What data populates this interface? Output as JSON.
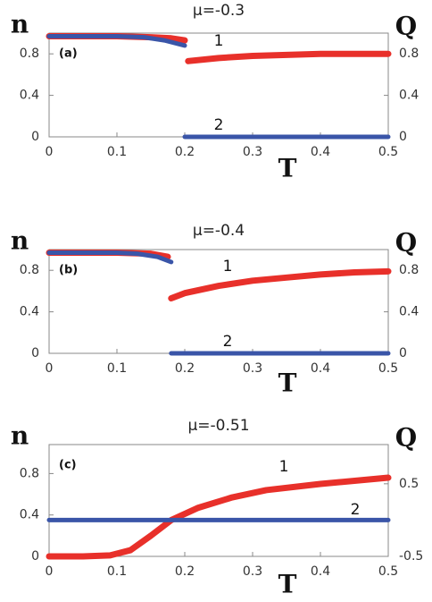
{
  "chart_data": [
    {
      "type": "line",
      "title": "μ=-0.3",
      "ylabel": "n",
      "y2label": "Q",
      "xlabel": "T",
      "panel_label": "(a)",
      "xlim": [
        0,
        0.5
      ],
      "xticks": [
        0,
        0.1,
        0.2,
        0.3,
        0.4,
        0.5
      ],
      "ylim": [
        0,
        1
      ],
      "yticks": [
        0,
        0.4,
        0.8
      ],
      "y2lim": [
        0,
        1
      ],
      "y2ticks": [
        0,
        0.4,
        0.8
      ],
      "annotations": [
        "1",
        "2"
      ],
      "series": [
        {
          "color": "#e8302a",
          "x": [
            0,
            0.05,
            0.1,
            0.15,
            0.18,
            0.2,
            0.2,
            0.205,
            0.25,
            0.3,
            0.35,
            0.4,
            0.45,
            0.5
          ],
          "values": [
            0.97,
            0.97,
            0.97,
            0.96,
            0.95,
            0.93,
            null,
            0.73,
            0.76,
            0.78,
            0.79,
            0.8,
            0.8,
            0.8
          ]
        },
        {
          "color": "#3a55a8",
          "axis": "y2",
          "x": [
            0,
            0.05,
            0.1,
            0.14,
            0.17,
            0.2,
            0.2,
            0.2,
            0.3,
            0.4,
            0.5
          ],
          "values": [
            0.97,
            0.97,
            0.97,
            0.96,
            0.93,
            0.88,
            null,
            0,
            0,
            0,
            0
          ]
        }
      ]
    },
    {
      "type": "line",
      "title": "μ=-0.4",
      "ylabel": "n",
      "y2label": "Q",
      "xlabel": "T",
      "panel_label": "(b)",
      "xlim": [
        0,
        0.5
      ],
      "xticks": [
        0,
        0.1,
        0.2,
        0.3,
        0.4,
        0.5
      ],
      "ylim": [
        0,
        1
      ],
      "yticks": [
        0,
        0.4,
        0.8
      ],
      "y2lim": [
        0,
        1
      ],
      "y2ticks": [
        0,
        0.4,
        0.8
      ],
      "annotations": [
        "1",
        "2"
      ],
      "series": [
        {
          "color": "#e8302a",
          "x": [
            0,
            0.05,
            0.1,
            0.15,
            0.175,
            0.175,
            0.18,
            0.2,
            0.25,
            0.3,
            0.35,
            0.4,
            0.45,
            0.5
          ],
          "values": [
            0.97,
            0.97,
            0.97,
            0.96,
            0.93,
            null,
            0.53,
            0.58,
            0.65,
            0.7,
            0.73,
            0.76,
            0.78,
            0.79
          ]
        },
        {
          "color": "#3a55a8",
          "axis": "y2",
          "x": [
            0,
            0.05,
            0.1,
            0.13,
            0.16,
            0.18,
            0.18,
            0.18,
            0.3,
            0.4,
            0.5
          ],
          "values": [
            0.97,
            0.97,
            0.97,
            0.96,
            0.93,
            0.88,
            null,
            0,
            0,
            0,
            0
          ]
        }
      ]
    },
    {
      "type": "line",
      "title": "μ=-0.51",
      "ylabel": "n",
      "y2label": "Q",
      "xlabel": "T",
      "panel_label": "(c)",
      "xlim": [
        0,
        0.5
      ],
      "xticks": [
        0,
        0.1,
        0.2,
        0.3,
        0.4,
        0.5
      ],
      "ylim": [
        0,
        1.08
      ],
      "yticks": [
        0,
        0.4,
        0.8
      ],
      "y2lim": [
        -0.5,
        1.04
      ],
      "y2ticks": [
        -0.5,
        0.5
      ],
      "annotations": [
        "1",
        "2"
      ],
      "series": [
        {
          "color": "#e8302a",
          "x": [
            0,
            0.05,
            0.09,
            0.12,
            0.15,
            0.18,
            0.22,
            0.27,
            0.32,
            0.4,
            0.5
          ],
          "values": [
            0,
            0,
            0.01,
            0.06,
            0.2,
            0.35,
            0.47,
            0.57,
            0.64,
            0.7,
            0.76
          ]
        },
        {
          "color": "#3a55a8",
          "axis": "y2",
          "x": [
            0,
            0.5
          ],
          "values": [
            0,
            0
          ]
        }
      ]
    }
  ]
}
